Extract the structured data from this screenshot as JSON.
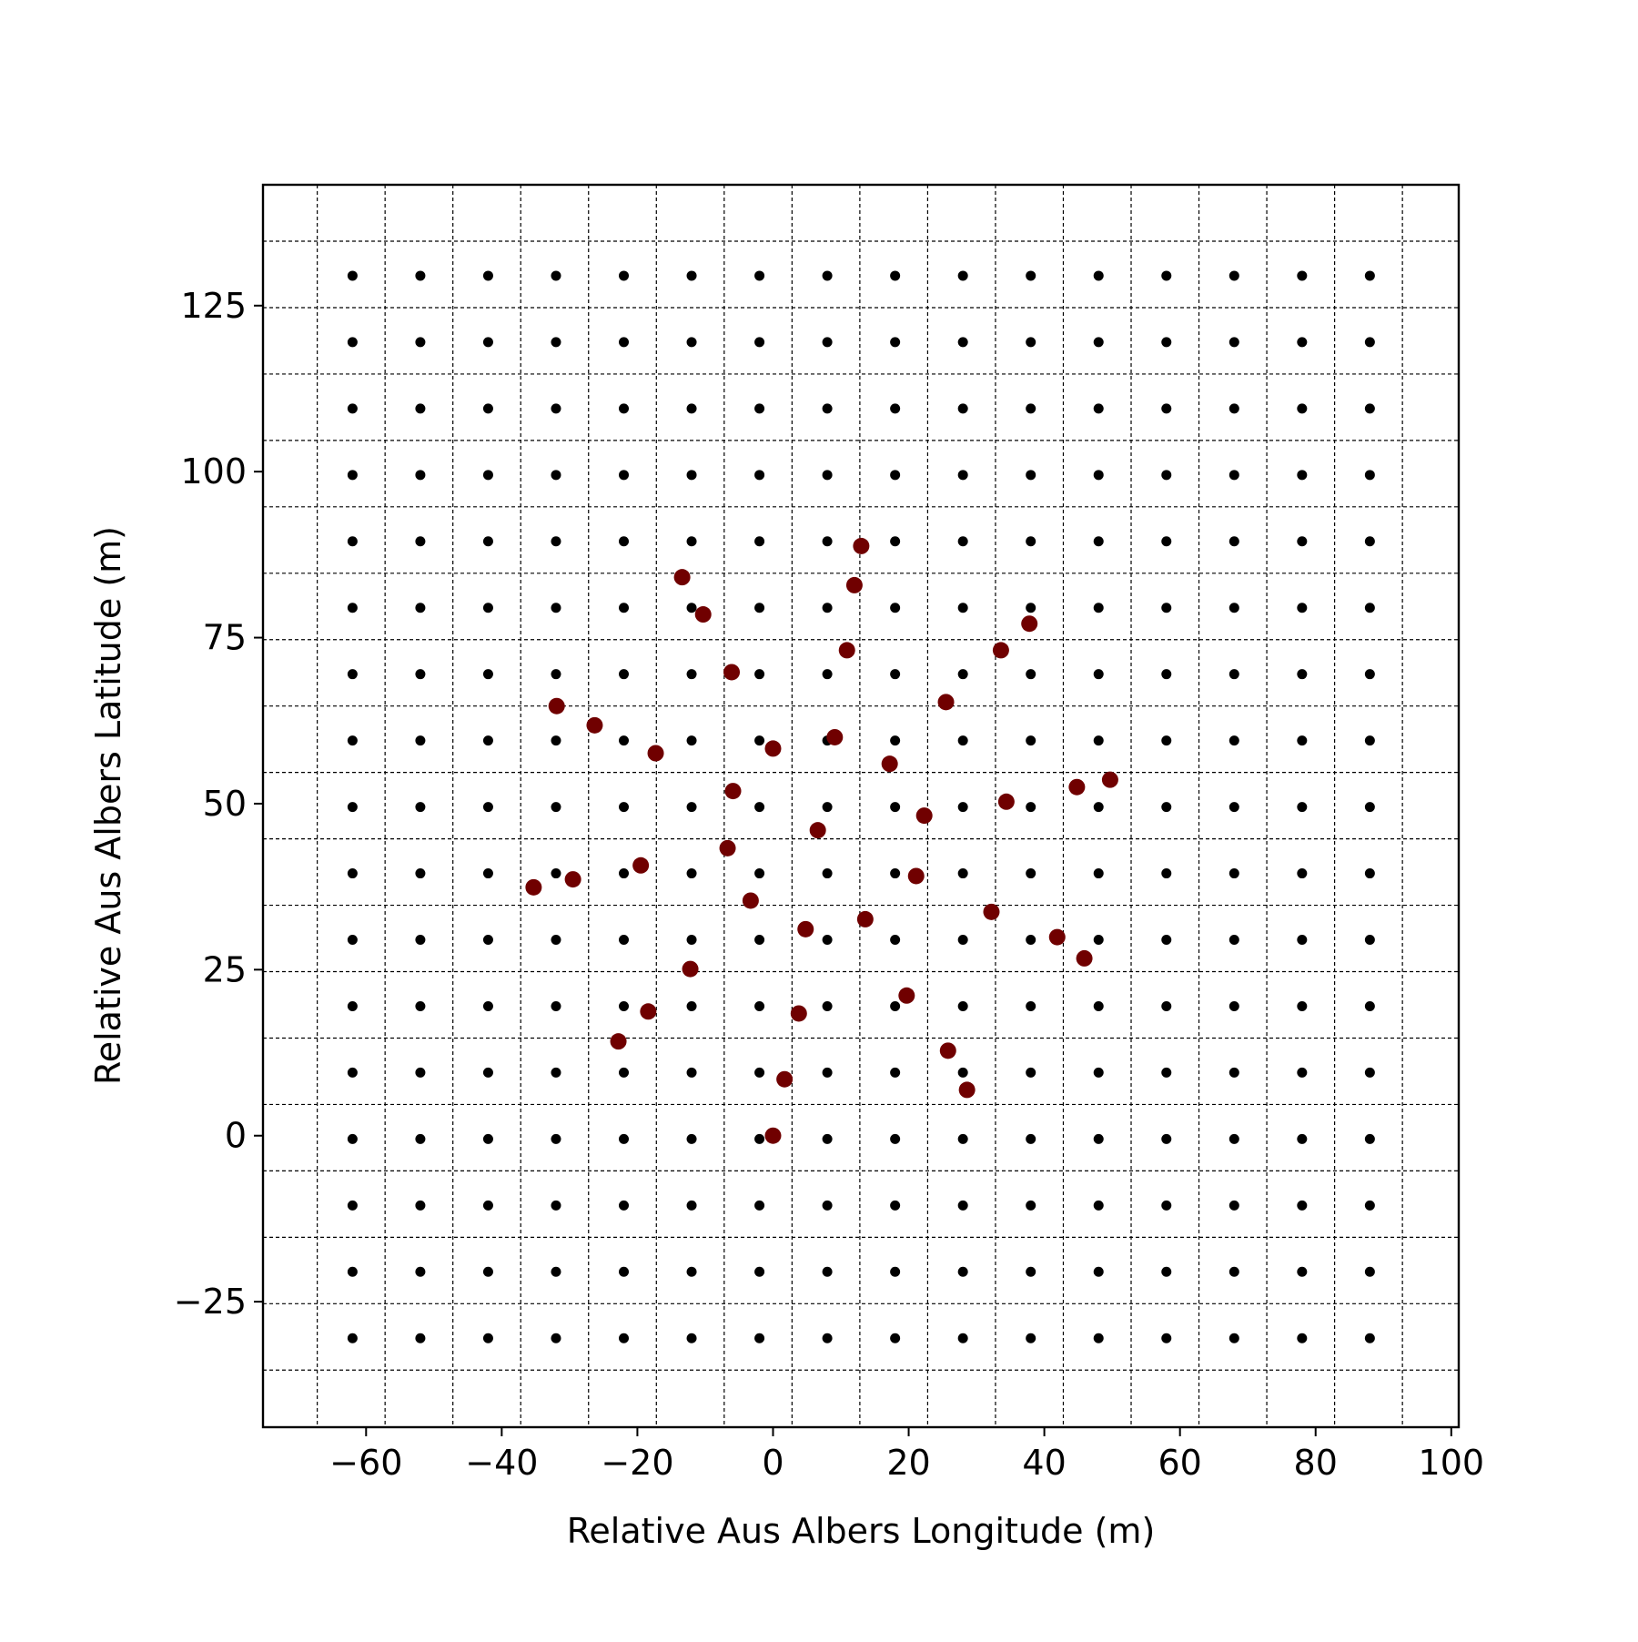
{
  "chart_data": {
    "type": "scatter",
    "x_label": "Relative Aus Albers Longitude (m)",
    "y_label": "Relative Aus Albers Latitude (m)",
    "xlim": [
      -75.2,
      101.1
    ],
    "ylim": [
      -43.9,
      143.2
    ],
    "xticks": [
      {
        "value": -60,
        "label": "−60"
      },
      {
        "value": -40,
        "label": "−40"
      },
      {
        "value": -20,
        "label": "−20"
      },
      0,
      20,
      40,
      60,
      80,
      100
    ],
    "yticks": [
      {
        "value": -25,
        "label": "−25"
      },
      0,
      25,
      50,
      75,
      100,
      125
    ],
    "grid_x": [
      -67.2,
      -57.2,
      -47.2,
      -37.2,
      -27.2,
      -17.2,
      -7.2,
      2.8,
      12.8,
      22.8,
      32.8,
      42.8,
      52.8,
      62.8,
      72.8,
      82.8,
      92.8
    ],
    "grid_y": [
      134.7,
      124.7,
      114.7,
      104.7,
      94.7,
      84.7,
      74.7,
      64.7,
      54.7,
      44.7,
      34.7,
      24.7,
      14.7,
      4.7,
      -5.3,
      -15.3,
      -25.3,
      -35.3
    ],
    "series": [
      {
        "color": "#000000",
        "x": [
          -62,
          -52,
          -42,
          -32,
          -22,
          -12,
          -2,
          8,
          18,
          28,
          38,
          48,
          58,
          68,
          78,
          88,
          -62,
          -52,
          -42,
          -32,
          -22,
          -12,
          -2,
          8,
          18,
          28,
          38,
          48,
          58,
          68,
          78,
          88,
          -62,
          -52,
          -42,
          -32,
          -22,
          -12,
          -2,
          8,
          18,
          28,
          38,
          48,
          58,
          68,
          78,
          88,
          -62,
          -52,
          -42,
          -32,
          -22,
          -12,
          -2,
          8,
          18,
          28,
          38,
          48,
          58,
          68,
          78,
          88,
          -62,
          -52,
          -42,
          -32,
          -22,
          -12,
          -2,
          8,
          18,
          28,
          38,
          48,
          58,
          68,
          78,
          88,
          -62,
          -52,
          -42,
          -32,
          -22,
          -12,
          -2,
          8,
          18,
          28,
          38,
          48,
          58,
          68,
          78,
          88,
          -62,
          -52,
          -42,
          -32,
          -22,
          -12,
          -2,
          8,
          18,
          28,
          38,
          48,
          58,
          68,
          78,
          88,
          -62,
          -52,
          -42,
          -32,
          -22,
          -12,
          -2,
          8,
          18,
          28,
          38,
          48,
          58,
          68,
          78,
          88,
          -62,
          -52,
          -42,
          -32,
          -22,
          -12,
          -2,
          8,
          18,
          28,
          38,
          48,
          58,
          68,
          78,
          88,
          -62,
          -52,
          -42,
          -32,
          -22,
          -12,
          -2,
          8,
          18,
          28,
          38,
          48,
          58,
          68,
          78,
          88,
          -62,
          -52,
          -42,
          -32,
          -22,
          -12,
          -2,
          8,
          18,
          28,
          38,
          48,
          58,
          68,
          78,
          88,
          -62,
          -52,
          -42,
          -32,
          -22,
          -12,
          -2,
          8,
          18,
          28,
          38,
          48,
          58,
          68,
          78,
          88,
          -62,
          -52,
          -42,
          -32,
          -22,
          -12,
          -2,
          8,
          18,
          28,
          38,
          48,
          58,
          68,
          78,
          88,
          -62,
          -52,
          -42,
          -32,
          -22,
          -12,
          -2,
          8,
          18,
          28,
          38,
          48,
          58,
          68,
          78,
          88,
          -62,
          -52,
          -42,
          -32,
          -22,
          -12,
          -2,
          8,
          18,
          28,
          38,
          48,
          58,
          68,
          78,
          88,
          -62,
          -52,
          -42,
          -32,
          -22,
          -12,
          -2,
          8,
          18,
          28,
          38,
          48,
          58,
          68,
          78,
          88,
          -62,
          -52,
          -42,
          -32,
          -22,
          -12,
          -2,
          8,
          18,
          28,
          38,
          48,
          58,
          68,
          78,
          88
        ],
        "y": [
          129.5,
          129.5,
          129.5,
          129.5,
          129.5,
          129.5,
          129.5,
          129.5,
          129.5,
          129.5,
          129.5,
          129.5,
          129.5,
          129.5,
          129.5,
          129.5,
          119.5,
          119.5,
          119.5,
          119.5,
          119.5,
          119.5,
          119.5,
          119.5,
          119.5,
          119.5,
          119.5,
          119.5,
          119.5,
          119.5,
          119.5,
          119.5,
          109.5,
          109.5,
          109.5,
          109.5,
          109.5,
          109.5,
          109.5,
          109.5,
          109.5,
          109.5,
          109.5,
          109.5,
          109.5,
          109.5,
          109.5,
          109.5,
          99.5,
          99.5,
          99.5,
          99.5,
          99.5,
          99.5,
          99.5,
          99.5,
          99.5,
          99.5,
          99.5,
          99.5,
          99.5,
          99.5,
          99.5,
          99.5,
          89.5,
          89.5,
          89.5,
          89.5,
          89.5,
          89.5,
          89.5,
          89.5,
          89.5,
          89.5,
          89.5,
          89.5,
          89.5,
          89.5,
          89.5,
          89.5,
          79.5,
          79.5,
          79.5,
          79.5,
          79.5,
          79.5,
          79.5,
          79.5,
          79.5,
          79.5,
          79.5,
          79.5,
          79.5,
          79.5,
          79.5,
          79.5,
          69.5,
          69.5,
          69.5,
          69.5,
          69.5,
          69.5,
          69.5,
          69.5,
          69.5,
          69.5,
          69.5,
          69.5,
          69.5,
          69.5,
          69.5,
          69.5,
          59.5,
          59.5,
          59.5,
          59.5,
          59.5,
          59.5,
          59.5,
          59.5,
          59.5,
          59.5,
          59.5,
          59.5,
          59.5,
          59.5,
          59.5,
          59.5,
          49.5,
          49.5,
          49.5,
          49.5,
          49.5,
          49.5,
          49.5,
          49.5,
          49.5,
          49.5,
          49.5,
          49.5,
          49.5,
          49.5,
          49.5,
          49.5,
          39.5,
          39.5,
          39.5,
          39.5,
          39.5,
          39.5,
          39.5,
          39.5,
          39.5,
          39.5,
          39.5,
          39.5,
          39.5,
          39.5,
          39.5,
          39.5,
          29.5,
          29.5,
          29.5,
          29.5,
          29.5,
          29.5,
          29.5,
          29.5,
          29.5,
          29.5,
          29.5,
          29.5,
          29.5,
          29.5,
          29.5,
          29.5,
          19.5,
          19.5,
          19.5,
          19.5,
          19.5,
          19.5,
          19.5,
          19.5,
          19.5,
          19.5,
          19.5,
          19.5,
          19.5,
          19.5,
          19.5,
          19.5,
          9.5,
          9.5,
          9.5,
          9.5,
          9.5,
          9.5,
          9.5,
          9.5,
          9.5,
          9.5,
          9.5,
          9.5,
          9.5,
          9.5,
          9.5,
          9.5,
          -0.5,
          -0.5,
          -0.5,
          -0.5,
          -0.5,
          -0.5,
          -0.5,
          -0.5,
          -0.5,
          -0.5,
          -0.5,
          -0.5,
          -0.5,
          -0.5,
          -0.5,
          -0.5,
          -10.5,
          -10.5,
          -10.5,
          -10.5,
          -10.5,
          -10.5,
          -10.5,
          -10.5,
          -10.5,
          -10.5,
          -10.5,
          -10.5,
          -10.5,
          -10.5,
          -10.5,
          -10.5,
          -20.5,
          -20.5,
          -20.5,
          -20.5,
          -20.5,
          -20.5,
          -20.5,
          -20.5,
          -20.5,
          -20.5,
          -20.5,
          -20.5,
          -20.5,
          -20.5,
          -20.5,
          -20.5,
          -30.5,
          -30.5,
          -30.5,
          -30.5,
          -30.5,
          -30.5,
          -30.5,
          -30.5,
          -30.5,
          -30.5,
          -30.5,
          -30.5,
          -30.5,
          -30.5,
          -30.5,
          -30.5
        ]
      },
      {
        "color": "#700000",
        "x": [
          -13.4,
          -10.3,
          12.0,
          13.0,
          10.9,
          33.6,
          37.8,
          -6.1,
          -31.9,
          -26.3,
          -17.3,
          0.0,
          9.1,
          25.5,
          17.2,
          -5.9,
          44.8,
          49.7,
          34.4,
          22.3,
          6.6,
          -6.7,
          -19.5,
          -29.5,
          -35.3,
          21.1,
          -3.3,
          32.2,
          13.6,
          4.8,
          41.9,
          45.9,
          -12.2,
          19.7,
          -18.4,
          3.8,
          -22.8,
          25.8,
          1.7,
          28.6,
          0
        ],
        "y": [
          84.1,
          78.5,
          82.9,
          88.8,
          73.1,
          73.1,
          77.1,
          69.8,
          64.7,
          61.8,
          57.6,
          58.3,
          60.0,
          65.3,
          56.0,
          51.9,
          52.5,
          53.6,
          50.3,
          48.2,
          46.0,
          43.3,
          40.7,
          38.6,
          37.4,
          39.1,
          35.4,
          33.7,
          32.6,
          31.1,
          29.9,
          26.7,
          25.1,
          21.1,
          18.7,
          18.4,
          14.2,
          12.8,
          8.5,
          6.9,
          0
        ]
      }
    ]
  }
}
